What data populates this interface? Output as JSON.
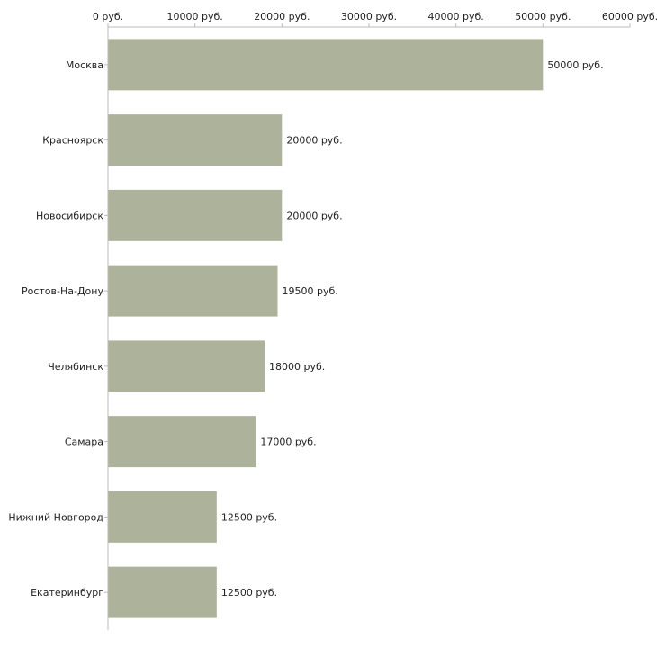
{
  "chart_data": {
    "type": "bar",
    "orientation": "horizontal",
    "title": "",
    "xlabel": "",
    "ylabel": "",
    "categories": [
      "Москва",
      "Красноярск",
      "Новосибирск",
      "Ростов-На-Дону",
      "Челябинск",
      "Самара",
      "Нижний Новгород",
      "Екатеринбург"
    ],
    "values": [
      50000,
      20000,
      20000,
      19500,
      18000,
      17000,
      12500,
      12500
    ],
    "value_labels": [
      "50000 руб.",
      "20000 руб.",
      "20000 руб.",
      "19500 руб.",
      "18000 руб.",
      "17000 руб.",
      "12500 руб.",
      "12500 руб."
    ],
    "xlim": [
      0,
      60000
    ],
    "ticks": [
      0,
      10000,
      20000,
      30000,
      40000,
      50000,
      60000
    ],
    "tick_labels": [
      "0 руб.",
      "10000 руб.",
      "20000 руб.",
      "30000 руб.",
      "40000 руб.",
      "50000 руб.",
      "60000 руб."
    ],
    "axis_position": "top",
    "grid": false,
    "legend": false,
    "colors": {
      "bar": "#adb39a",
      "axis": "#bbbbbb",
      "text": "#222222"
    }
  }
}
